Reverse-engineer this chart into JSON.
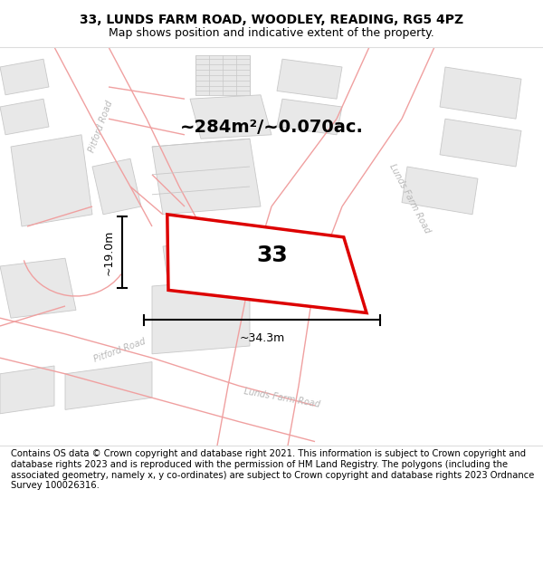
{
  "title": "33, LUNDS FARM ROAD, WOODLEY, READING, RG5 4PZ",
  "subtitle": "Map shows position and indicative extent of the property.",
  "footer": "Contains OS data © Crown copyright and database right 2021. This information is subject to Crown copyright and database rights 2023 and is reproduced with the permission of HM Land Registry. The polygons (including the associated geometry, namely x, y co-ordinates) are subject to Crown copyright and database rights 2023 Ordnance Survey 100026316.",
  "area_text": "~284m²/~0.070ac.",
  "plot_number": "33",
  "dim_width": "~34.3m",
  "dim_height": "~19.0m",
  "plot_color": "#dd0000",
  "road_pink": "#f0a0a0",
  "road_pink2": "#e88888",
  "building_face": "#e8e8e8",
  "building_edge": "#c8c8c8",
  "road_label_color": "#b8b8b8",
  "title_fontsize": 10,
  "subtitle_fontsize": 9,
  "footer_fontsize": 7.2,
  "area_fontsize": 14,
  "plot_num_fontsize": 18,
  "dim_fontsize": 9
}
